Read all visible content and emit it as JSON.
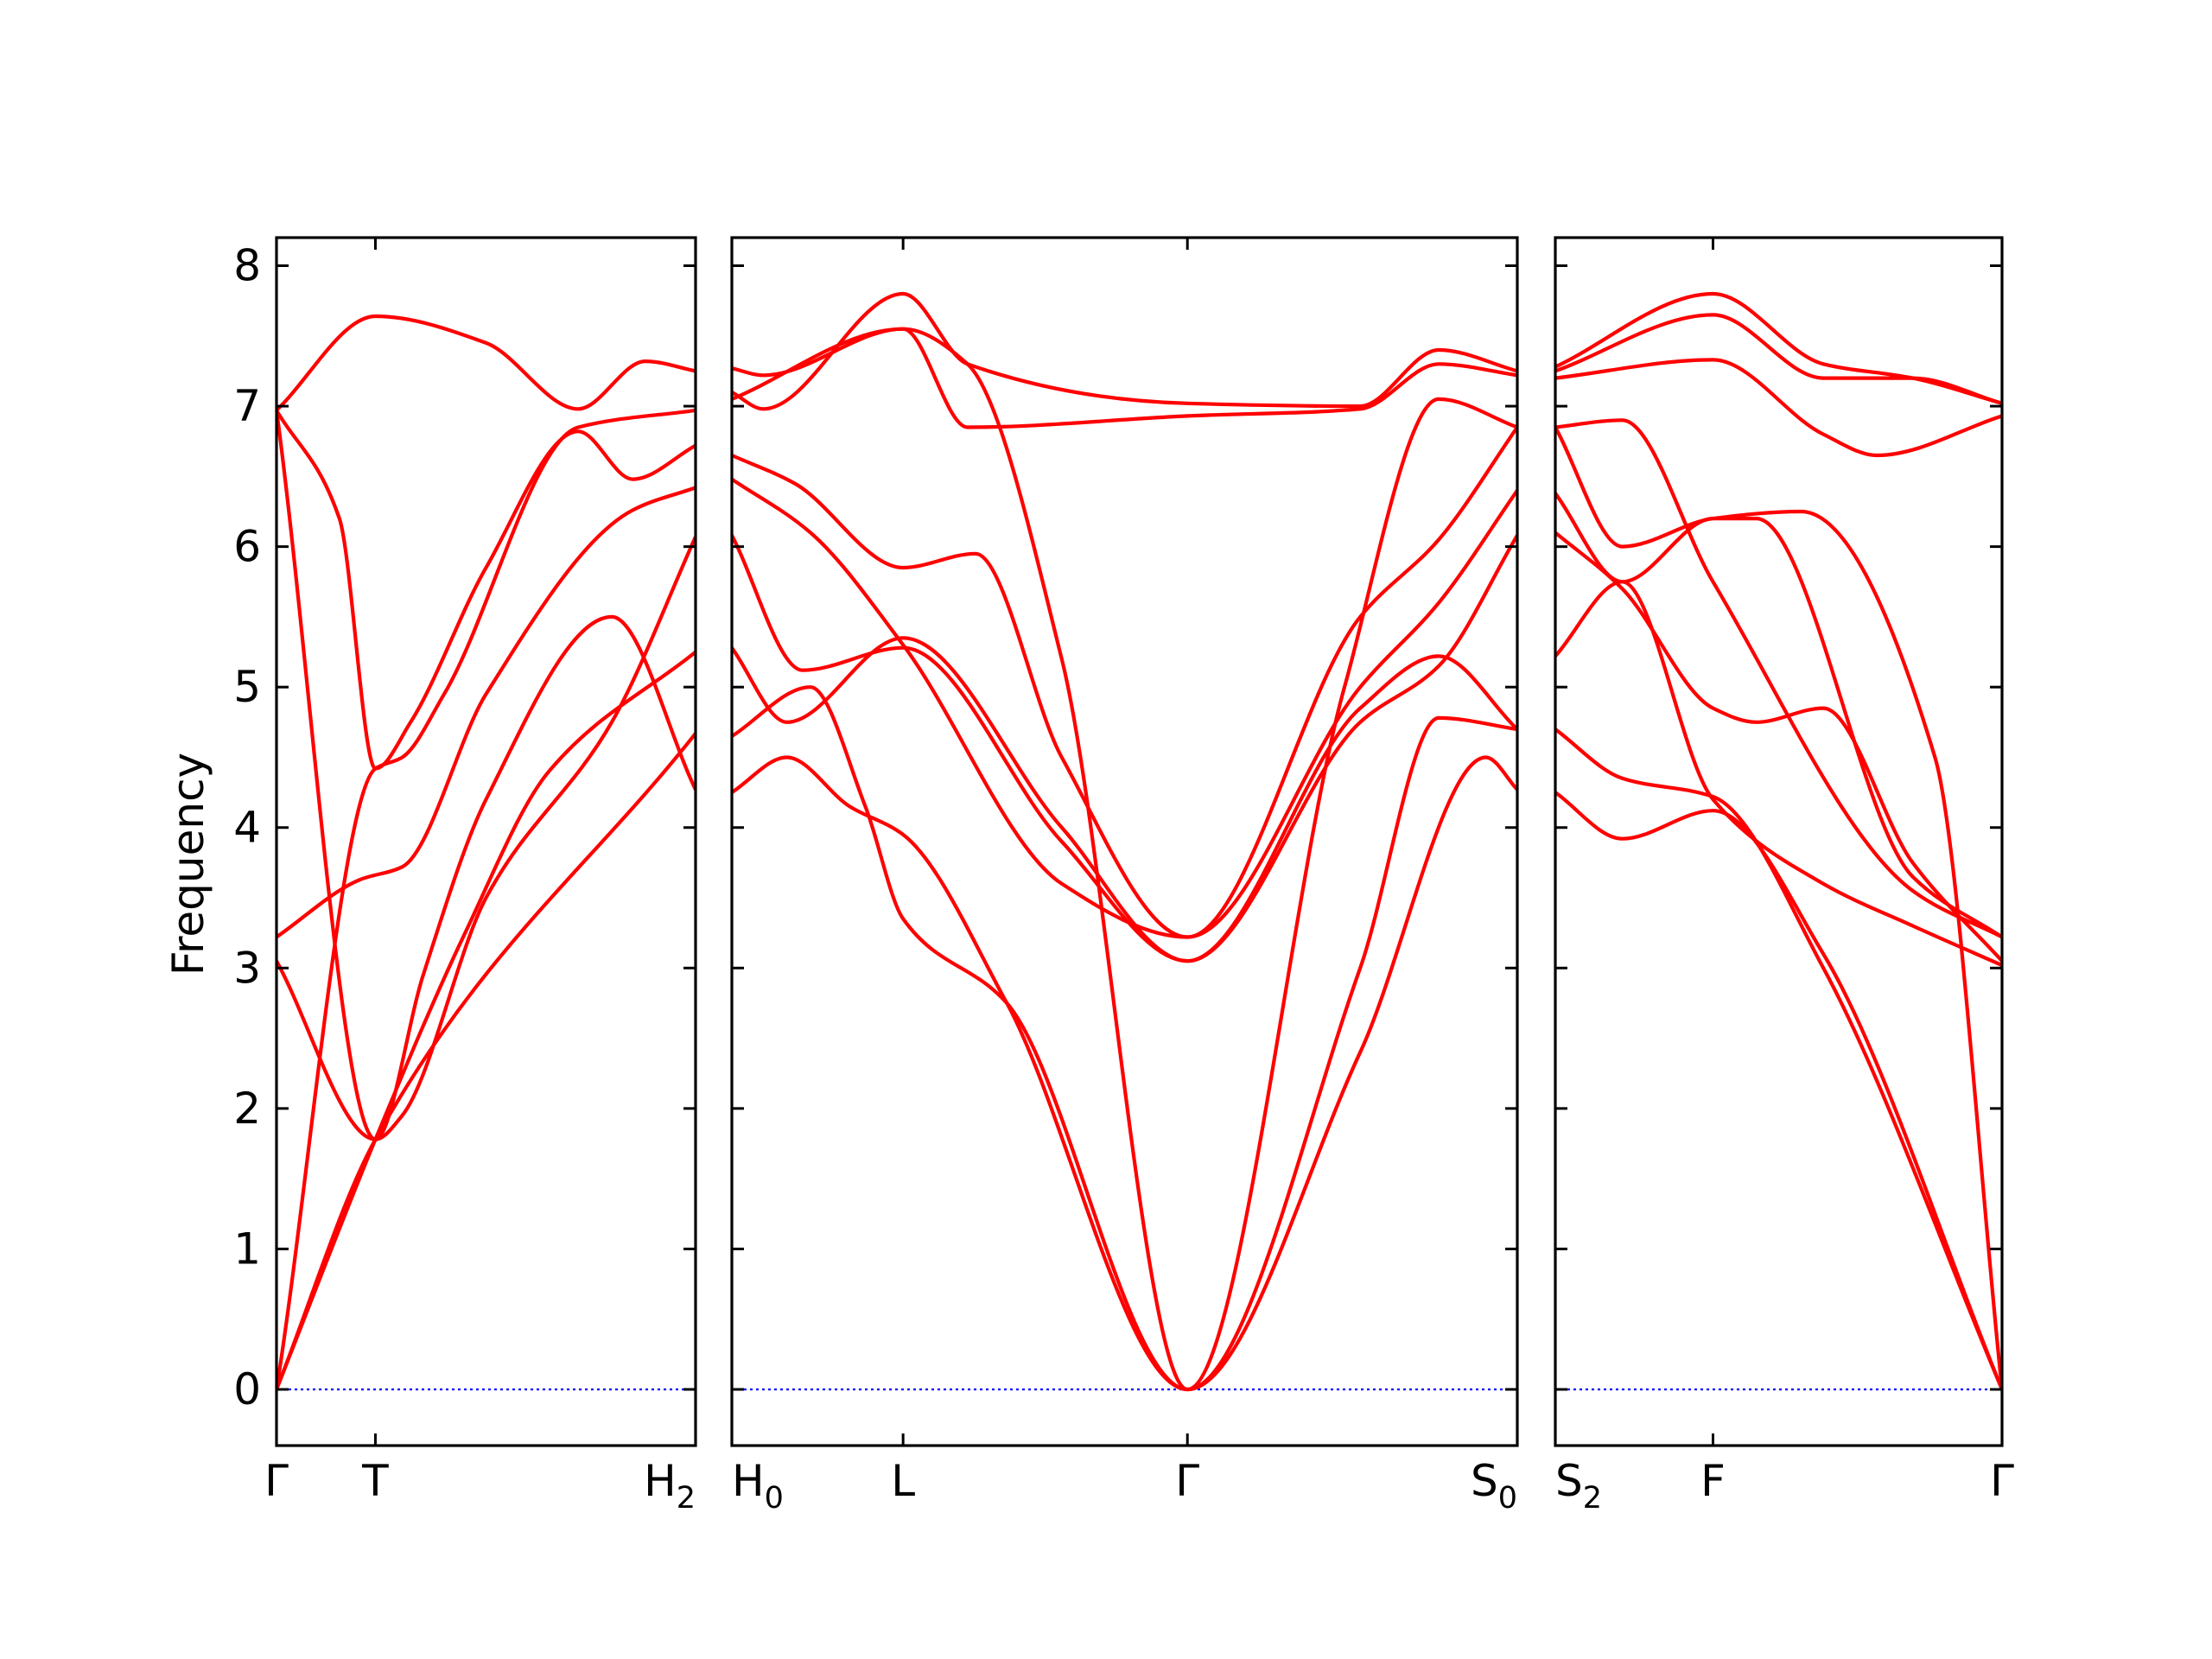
{
  "chart_data": {
    "type": "line",
    "ylabel": "Frequency",
    "ylim": [
      -0.4,
      8.2
    ],
    "yticks": [
      0,
      1,
      2,
      3,
      4,
      5,
      6,
      7,
      8
    ],
    "grid": false,
    "legend": "none",
    "colors": {
      "band": "#ff0000",
      "zero_line": "#0000ff",
      "axes": "#000000"
    },
    "panels": [
      {
        "id": "left",
        "x_range": [
          0,
          1
        ],
        "ticks": [
          {
            "x": 0.0,
            "label": "Γ",
            "sub": ""
          },
          {
            "x": 0.236,
            "label": "T",
            "sub": ""
          },
          {
            "x": 1.0,
            "label": "H",
            "sub": "2"
          }
        ],
        "bands": [
          [
            [
              0,
              0
            ],
            [
              0.236,
              1.78
            ],
            [
              1,
              4.67
            ]
          ],
          [
            [
              0,
              0
            ],
            [
              0.236,
              1.78
            ],
            [
              0.45,
              3.25
            ],
            [
              0.65,
              4.4
            ],
            [
              1,
              5.25
            ]
          ],
          [
            [
              0,
              0
            ],
            [
              0.236,
              4.42
            ],
            [
              0.3,
              4.5
            ],
            [
              0.4,
              4.95
            ],
            [
              0.72,
              6.85
            ],
            [
              1,
              6.97
            ]
          ],
          [
            [
              0,
              3.05
            ],
            [
              0.236,
              1.78
            ],
            [
              0.35,
              2.95
            ],
            [
              0.5,
              4.2
            ],
            [
              0.8,
              5.5
            ],
            [
              1,
              4.27
            ]
          ],
          [
            [
              0,
              3.22
            ],
            [
              0.2,
              3.63
            ],
            [
              0.3,
              3.72
            ],
            [
              0.5,
              4.95
            ],
            [
              0.85,
              6.26
            ],
            [
              1,
              6.42
            ]
          ],
          [
            [
              0,
              6.97
            ],
            [
              0.15,
              6.2
            ],
            [
              0.236,
              4.42
            ],
            [
              0.32,
              4.75
            ],
            [
              0.5,
              5.85
            ],
            [
              0.72,
              6.82
            ],
            [
              0.85,
              6.48
            ],
            [
              1,
              6.72
            ]
          ],
          [
            [
              0,
              6.97
            ],
            [
              0.236,
              1.78
            ],
            [
              0.3,
              1.95
            ],
            [
              0.5,
              3.5
            ],
            [
              0.8,
              4.75
            ],
            [
              1,
              6.07
            ]
          ],
          [
            [
              0,
              6.97
            ],
            [
              0.236,
              7.64
            ],
            [
              0.5,
              7.45
            ],
            [
              0.72,
              6.98
            ],
            [
              0.88,
              7.32
            ],
            [
              1,
              7.25
            ]
          ]
        ]
      },
      {
        "id": "middle",
        "x_range": [
          0,
          1
        ],
        "ticks": [
          {
            "x": 0.0,
            "label": "H",
            "sub": "0"
          },
          {
            "x": 0.218,
            "label": "L",
            "sub": ""
          },
          {
            "x": 0.58,
            "label": "Γ",
            "sub": ""
          },
          {
            "x": 1.0,
            "label": "S",
            "sub": "0"
          }
        ],
        "bands": [
          [
            [
              0,
              4.25
            ],
            [
              0.07,
              4.5
            ],
            [
              0.15,
              4.15
            ],
            [
              0.218,
              3.95
            ],
            [
              0.35,
              2.75
            ],
            [
              0.58,
              0
            ],
            [
              0.8,
              2.4
            ],
            [
              0.96,
              4.5
            ],
            [
              1,
              4.27
            ]
          ],
          [
            [
              0,
              4.65
            ],
            [
              0.1,
              5.0
            ],
            [
              0.17,
              4.15
            ],
            [
              0.218,
              3.35
            ],
            [
              0.35,
              2.75
            ],
            [
              0.58,
              0
            ],
            [
              0.8,
              3.0
            ],
            [
              0.9,
              4.78
            ],
            [
              1,
              4.7
            ]
          ],
          [
            [
              0,
              5.28
            ],
            [
              0.07,
              4.75
            ],
            [
              0.218,
              5.35
            ],
            [
              0.42,
              4.0
            ],
            [
              0.58,
              3.05
            ],
            [
              0.8,
              4.85
            ],
            [
              0.9,
              5.22
            ],
            [
              1,
              4.7
            ]
          ],
          [
            [
              0,
              6.08
            ],
            [
              0.09,
              5.12
            ],
            [
              0.218,
              5.28
            ],
            [
              0.42,
              3.9
            ],
            [
              0.58,
              3.05
            ],
            [
              0.8,
              4.75
            ],
            [
              0.9,
              5.15
            ],
            [
              1,
              6.08
            ]
          ],
          [
            [
              0,
              6.48
            ],
            [
              0.1,
              6.1
            ],
            [
              0.218,
              5.3
            ],
            [
              0.42,
              3.6
            ],
            [
              0.58,
              3.22
            ],
            [
              0.8,
              5.0
            ],
            [
              0.9,
              5.6
            ],
            [
              1,
              6.4
            ]
          ],
          [
            [
              0,
              6.65
            ],
            [
              0.08,
              6.45
            ],
            [
              0.218,
              5.85
            ],
            [
              0.31,
              5.95
            ],
            [
              0.42,
              4.5
            ],
            [
              0.58,
              3.22
            ],
            [
              0.8,
              5.5
            ],
            [
              0.9,
              6.05
            ],
            [
              1,
              6.85
            ]
          ],
          [
            [
              0,
              7.05
            ],
            [
              0.218,
              7.55
            ],
            [
              0.3,
              7.3
            ],
            [
              0.42,
              5.2
            ],
            [
              0.58,
              0
            ],
            [
              0.78,
              5.0
            ],
            [
              0.9,
              7.05
            ],
            [
              1,
              6.85
            ]
          ],
          [
            [
              0,
              7.27
            ],
            [
              0.04,
              7.22
            ],
            [
              0.218,
              7.55
            ],
            [
              0.3,
              6.85
            ],
            [
              0.58,
              6.93
            ],
            [
              0.8,
              6.98
            ],
            [
              0.9,
              7.3
            ],
            [
              1,
              7.22
            ]
          ],
          [
            [
              0,
              7.1
            ],
            [
              0.04,
              6.98
            ],
            [
              0.218,
              7.8
            ],
            [
              0.3,
              7.3
            ],
            [
              0.58,
              7.02
            ],
            [
              0.8,
              7.0
            ],
            [
              0.9,
              7.4
            ],
            [
              1,
              7.25
            ]
          ]
        ]
      },
      {
        "id": "right",
        "x_range": [
          0,
          1
        ],
        "ticks": [
          {
            "x": 0.0,
            "label": "S",
            "sub": "2"
          },
          {
            "x": 0.353,
            "label": "F",
            "sub": ""
          },
          {
            "x": 1.0,
            "label": "Γ",
            "sub": ""
          }
        ],
        "bands": [
          [
            [
              0,
              4.25
            ],
            [
              0.15,
              3.92
            ],
            [
              0.353,
              4.12
            ],
            [
              0.6,
              3.1
            ],
            [
              1,
              0
            ]
          ],
          [
            [
              0,
              4.7
            ],
            [
              0.15,
              4.35
            ],
            [
              0.353,
              4.22
            ],
            [
              0.6,
              3.0
            ],
            [
              1,
              0
            ]
          ],
          [
            [
              0,
              5.22
            ],
            [
              0.15,
              5.75
            ],
            [
              0.353,
              4.2
            ],
            [
              0.6,
              3.6
            ],
            [
              0.8,
              3.3
            ],
            [
              1,
              3.02
            ]
          ],
          [
            [
              0,
              6.1
            ],
            [
              0.15,
              5.7
            ],
            [
              0.353,
              4.85
            ],
            [
              0.45,
              4.75
            ],
            [
              0.6,
              4.85
            ],
            [
              0.8,
              3.75
            ],
            [
              1,
              3.05
            ]
          ],
          [
            [
              0,
              6.38
            ],
            [
              0.15,
              5.75
            ],
            [
              0.353,
              6.2
            ],
            [
              0.45,
              6.2
            ],
            [
              0.8,
              3.65
            ],
            [
              1,
              3.22
            ]
          ],
          [
            [
              0,
              6.85
            ],
            [
              0.15,
              6.9
            ],
            [
              0.353,
              5.75
            ],
            [
              0.8,
              3.55
            ],
            [
              1,
              3.22
            ]
          ],
          [
            [
              0,
              6.85
            ],
            [
              0.15,
              6.0
            ],
            [
              0.353,
              6.2
            ],
            [
              0.55,
              6.25
            ],
            [
              0.85,
              4.5
            ],
            [
              1,
              0
            ]
          ],
          [
            [
              0,
              7.2
            ],
            [
              0.353,
              7.33
            ],
            [
              0.6,
              6.8
            ],
            [
              0.72,
              6.65
            ],
            [
              1,
              6.93
            ]
          ],
          [
            [
              0,
              7.25
            ],
            [
              0.353,
              7.65
            ],
            [
              0.6,
              7.2
            ],
            [
              0.8,
              7.2
            ],
            [
              1,
              7.02
            ]
          ],
          [
            [
              0,
              7.28
            ],
            [
              0.353,
              7.8
            ],
            [
              0.6,
              7.3
            ],
            [
              0.8,
              7.2
            ],
            [
              1,
              7.02
            ]
          ]
        ]
      }
    ]
  }
}
